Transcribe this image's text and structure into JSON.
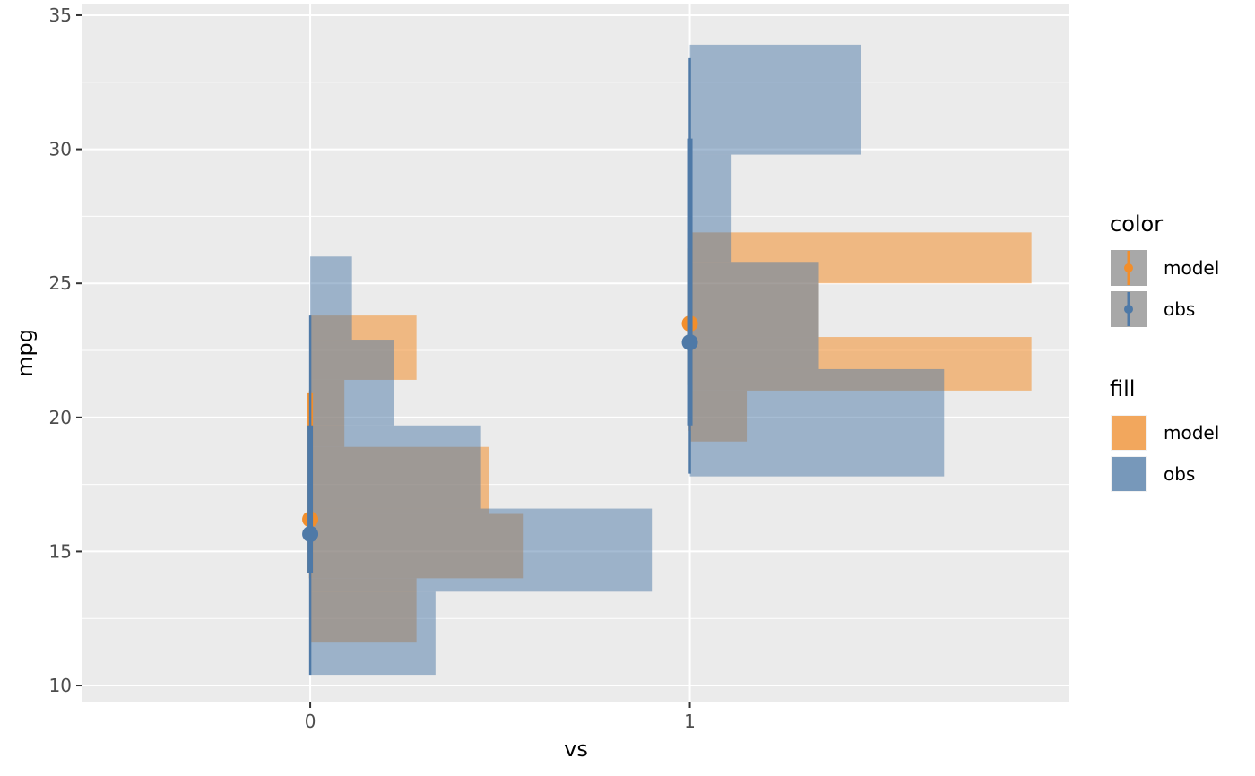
{
  "chart_data": {
    "type": "histogram-interval",
    "xlabel": "vs",
    "ylabel": "mpg",
    "x_categories": [
      "0",
      "1"
    ],
    "x_range": [
      -0.6,
      2.0
    ],
    "ylim": [
      9.4,
      35.4
    ],
    "y_ticks": [
      10,
      15,
      20,
      25,
      30,
      35
    ],
    "y_tick_labels": [
      "10",
      "15",
      "20",
      "25",
      "30",
      "35"
    ],
    "grid": true,
    "legend_position": "right",
    "colors": {
      "model": "#f28e2b",
      "obs": "#4e79a7",
      "panel": "#ebebeb",
      "grid": "#ffffff",
      "key_bg": "#a8a8a8"
    },
    "legends": [
      {
        "title": "color",
        "kind": "pointrange",
        "entries": [
          {
            "label": "model",
            "key": "model"
          },
          {
            "label": "obs",
            "key": "obs"
          }
        ]
      },
      {
        "title": "fill",
        "kind": "fill",
        "entries": [
          {
            "label": "model",
            "key": "model"
          },
          {
            "label": "obs",
            "key": "obs"
          }
        ]
      }
    ],
    "histograms": [
      {
        "series": "model",
        "x": 0,
        "bins": [
          {
            "ymin": 11.6,
            "ymax": 14.0,
            "width": 0.28
          },
          {
            "ymin": 14.0,
            "ymax": 16.4,
            "width": 0.56
          },
          {
            "ymin": 16.4,
            "ymax": 18.9,
            "width": 0.47
          },
          {
            "ymin": 18.9,
            "ymax": 21.4,
            "width": 0.09
          },
          {
            "ymin": 21.4,
            "ymax": 23.8,
            "width": 0.28
          }
        ]
      },
      {
        "series": "obs",
        "x": 0,
        "bins": [
          {
            "ymin": 10.4,
            "ymax": 13.5,
            "width": 0.33
          },
          {
            "ymin": 13.5,
            "ymax": 16.6,
            "width": 0.9
          },
          {
            "ymin": 16.6,
            "ymax": 19.7,
            "width": 0.45
          },
          {
            "ymin": 19.7,
            "ymax": 22.9,
            "width": 0.22
          },
          {
            "ymin": 22.9,
            "ymax": 26.0,
            "width": 0.11
          }
        ]
      },
      {
        "series": "model",
        "x": 1,
        "bins": [
          {
            "ymin": 19.1,
            "ymax": 21.0,
            "width": 0.15
          },
          {
            "ymin": 21.0,
            "ymax": 23.0,
            "width": 0.9
          },
          {
            "ymin": 23.0,
            "ymax": 25.0,
            "width": 0.34
          },
          {
            "ymin": 25.0,
            "ymax": 26.9,
            "width": 0.9
          }
        ]
      },
      {
        "series": "obs",
        "x": 1,
        "bins": [
          {
            "ymin": 17.8,
            "ymax": 21.8,
            "width": 0.67
          },
          {
            "ymin": 21.8,
            "ymax": 25.8,
            "width": 0.34
          },
          {
            "ymin": 25.8,
            "ymax": 29.8,
            "width": 0.11
          },
          {
            "ymin": 29.8,
            "ymax": 33.9,
            "width": 0.45
          }
        ]
      }
    ],
    "pointranges": [
      {
        "series": "model",
        "x": 0,
        "y": 16.2,
        "inner": [
          14.2,
          20.9
        ],
        "outer": [
          14.0,
          21.0
        ]
      },
      {
        "series": "obs",
        "x": 0,
        "y": 15.65,
        "inner": [
          14.2,
          19.7
        ],
        "outer": [
          10.4,
          23.8
        ]
      },
      {
        "series": "model",
        "x": 1,
        "y": 23.5,
        "inner": [
          21.2,
          26.3
        ],
        "outer": [
          19.5,
          26.9
        ]
      },
      {
        "series": "obs",
        "x": 1,
        "y": 22.8,
        "inner": [
          19.7,
          30.4
        ],
        "outer": [
          17.9,
          33.4
        ]
      }
    ]
  }
}
